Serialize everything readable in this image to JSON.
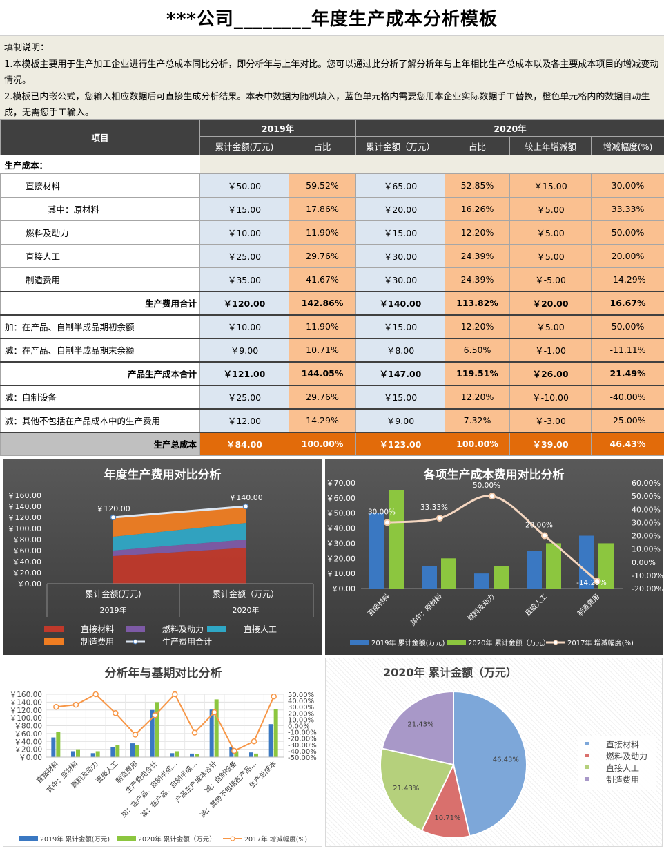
{
  "title": "***公司________年度生产成本分析模板",
  "notes": {
    "l1": "填制说明：",
    "l2": "1.本模板主要用于生产加工企业进行生产总成本同比分析，即分析年与上年对比。您可以通过此分析了解分析年与上年相比生产总成本以及各主要成本项目的增减变动",
    "l3": "情况。",
    "l4": "2.模板已内嵌公式，您输入相应数据后可直接生成分析结果。本表中数据为随机填入，蓝色单元格内需要您用本企业实际数据手工替换，橙色单元格内的数据自动生",
    "l5": "成，无需您手工输入。"
  },
  "table": {
    "header": {
      "item": "项目",
      "y2019": "2019年",
      "y2020": "2020年",
      "c2019_amt": "累计金额(万元)",
      "c2019_pct": "占比",
      "c2020_amt": "累计金额（万元）",
      "c2020_pct": "占比",
      "c2020_diff": "较上年增减额",
      "c2020_rate": "增减幅度(%)"
    },
    "section": "生产成本：",
    "rows": [
      {
        "label": "直接材料",
        "a": "￥50.00",
        "ap": "59.52%",
        "b": "￥65.00",
        "bp": "52.85%",
        "d": "￥15.00",
        "r": "30.00%"
      },
      {
        "label": "其中：原材料",
        "a": "￥15.00",
        "ap": "17.86%",
        "b": "￥20.00",
        "bp": "16.26%",
        "d": "￥5.00",
        "r": "33.33%"
      },
      {
        "label": "燃料及动力",
        "a": "￥10.00",
        "ap": "11.90%",
        "b": "￥15.00",
        "bp": "12.20%",
        "d": "￥5.00",
        "r": "50.00%"
      },
      {
        "label": "直接人工",
        "a": "￥25.00",
        "ap": "29.76%",
        "b": "￥30.00",
        "bp": "24.39%",
        "d": "￥5.00",
        "r": "20.00%"
      },
      {
        "label": "制造费用",
        "a": "￥35.00",
        "ap": "41.67%",
        "b": "￥30.00",
        "bp": "24.39%",
        "d": "￥-5.00",
        "r": "-14.29%"
      },
      {
        "label": "生产费用合计",
        "a": "￥120.00",
        "ap": "142.86%",
        "b": "￥140.00",
        "bp": "113.82%",
        "d": "￥20.00",
        "r": "16.67%"
      },
      {
        "label": "加：在产品、自制半成品期初余额",
        "a": "￥10.00",
        "ap": "11.90%",
        "b": "￥15.00",
        "bp": "12.20%",
        "d": "￥5.00",
        "r": "50.00%"
      },
      {
        "label": "减：在产品、自制半成品期末余额",
        "a": "￥9.00",
        "ap": "10.71%",
        "b": "￥8.00",
        "bp": "6.50%",
        "d": "￥-1.00",
        "r": "-11.11%"
      },
      {
        "label": "产品生产成本合计",
        "a": "￥121.00",
        "ap": "144.05%",
        "b": "￥147.00",
        "bp": "119.51%",
        "d": "￥26.00",
        "r": "21.49%"
      },
      {
        "label": "减：自制设备",
        "a": "￥25.00",
        "ap": "29.76%",
        "b": "￥15.00",
        "bp": "12.20%",
        "d": "￥-10.00",
        "r": "-40.00%"
      },
      {
        "label": "减：其他不包括在产品成本中的生产费用",
        "a": "￥12.00",
        "ap": "14.29%",
        "b": "￥9.00",
        "bp": "7.32%",
        "d": "￥-3.00",
        "r": "-25.00%"
      },
      {
        "label": "生产总成本",
        "a": "￥84.00",
        "ap": "100.00%",
        "b": "￥123.00",
        "bp": "100.00%",
        "d": "￥39.00",
        "r": "46.43%"
      }
    ]
  },
  "colors": {
    "blue_cell": "#dce6f1",
    "orange_cell": "#fac090",
    "grand_total": "#e26b0a",
    "header": "#404040"
  },
  "chart_data": [
    {
      "type": "area",
      "title": "年度生产费用对比分析",
      "categories": [
        "累计金额(万元)",
        "累计金额（万元）"
      ],
      "category_groups": [
        "2019年",
        "2020年"
      ],
      "ylim": [
        0,
        160
      ],
      "y_ticks": [
        "￥160.00",
        "￥140.00",
        "￥120.00",
        "￥100.00",
        "￥80.00",
        "￥60.00",
        "￥40.00",
        "￥20.00",
        "￥0.00"
      ],
      "series": [
        {
          "name": "直接材料",
          "values": [
            50,
            65
          ],
          "color": "#c0392b"
        },
        {
          "name": "燃料及动力",
          "values": [
            10,
            15
          ],
          "color": "#7d5aa6"
        },
        {
          "name": "直接人工",
          "values": [
            25,
            30
          ],
          "color": "#2fa7c5"
        },
        {
          "name": "制造费用",
          "values": [
            35,
            30
          ],
          "color": "#ef7d22"
        },
        {
          "name": "生产费用合计",
          "values": [
            120,
            140
          ],
          "color": "#dbe5f1"
        }
      ],
      "labels": [
        "￥120.00",
        "￥140.00"
      ],
      "legend": "bottom"
    },
    {
      "type": "bar",
      "title": "各项生产成本费用对比分析",
      "categories": [
        "直接材料",
        "其中：原材料",
        "燃料及动力",
        "直接人工",
        "制造费用"
      ],
      "ylim": [
        0,
        70
      ],
      "y2lim": [
        -20,
        60
      ],
      "y_ticks": [
        "￥70.00",
        "￥60.00",
        "￥50.00",
        "￥40.00",
        "￥30.00",
        "￥20.00",
        "￥10.00",
        "￥0.00"
      ],
      "y2_ticks": [
        "60.00%",
        "50.00%",
        "40.00%",
        "30.00%",
        "20.00%",
        "10.00%",
        "0.00%",
        "-10.00%",
        "-20.00%"
      ],
      "series": [
        {
          "name": "2019年 累计金额(万元)",
          "values": [
            50,
            15,
            10,
            25,
            35
          ],
          "color": "#3a78c2"
        },
        {
          "name": "2020年 累计金额（万元）",
          "values": [
            65,
            20,
            15,
            30,
            30
          ],
          "color": "#8cc63f"
        },
        {
          "name": "2017年 增减幅度(%)",
          "values": [
            30,
            33.33,
            50,
            20,
            -14.29
          ],
          "color": "#f4d6c0",
          "axis": "right"
        }
      ],
      "line_labels": [
        "30.00%",
        "33.33%",
        "50.00%",
        "20.00%",
        "-14.29%"
      ],
      "legend": "bottom"
    },
    {
      "type": "bar",
      "title": "分析年与基期对比分析",
      "categories": [
        "直接材料",
        "其中：原材料",
        "燃料及动力",
        "直接人工",
        "制造费用",
        "生产费用合计",
        "加：在产品、自制半成…",
        "减：在产品、自制半成…",
        "产品生产成本合计",
        "减：自制设备",
        "减：其他不包括在产品…",
        "生产总成本"
      ],
      "ylim": [
        0,
        160
      ],
      "y2lim": [
        -50,
        50
      ],
      "y_ticks": [
        "￥160.00",
        "￥140.00",
        "￥120.00",
        "￥100.00",
        "￥80.00",
        "￥60.00",
        "￥40.00",
        "￥20.00",
        "￥0.00"
      ],
      "y2_ticks": [
        "50.00%",
        "40.00%",
        "30.00%",
        "20.00%",
        "10.00%",
        "0.00%",
        "-10.00%",
        "-20.00%",
        "-30.00%",
        "-40.00%",
        "-50.00%"
      ],
      "series": [
        {
          "name": "2019年 累计金额(万元)",
          "values": [
            50,
            15,
            10,
            25,
            35,
            120,
            10,
            9,
            121,
            25,
            12,
            84
          ],
          "color": "#3a78c2"
        },
        {
          "name": "2020年 累计金额（万元）",
          "values": [
            65,
            20,
            15,
            30,
            30,
            140,
            15,
            8,
            147,
            15,
            9,
            123
          ],
          "color": "#8cc63f"
        },
        {
          "name": "2017年 增减幅度(%)",
          "values": [
            30,
            33.33,
            50,
            20,
            -14.29,
            16.67,
            50,
            -11.11,
            21.49,
            -40,
            -25,
            46.43
          ],
          "color": "#f79646",
          "axis": "right"
        }
      ],
      "legend": "bottom"
    },
    {
      "type": "pie",
      "title": "2020年 累计金额（万元）",
      "categories": [
        "直接材料",
        "燃料及动力",
        "直接人工",
        "制造费用"
      ],
      "values": [
        46.43,
        10.71,
        21.43,
        21.43
      ],
      "labels": [
        "46.43%",
        "10.71%",
        "21.43%",
        "21.43%"
      ],
      "colors": [
        "#7da7d9",
        "#d9706d",
        "#b5d07c",
        "#a898c8"
      ],
      "legend": "right"
    }
  ]
}
